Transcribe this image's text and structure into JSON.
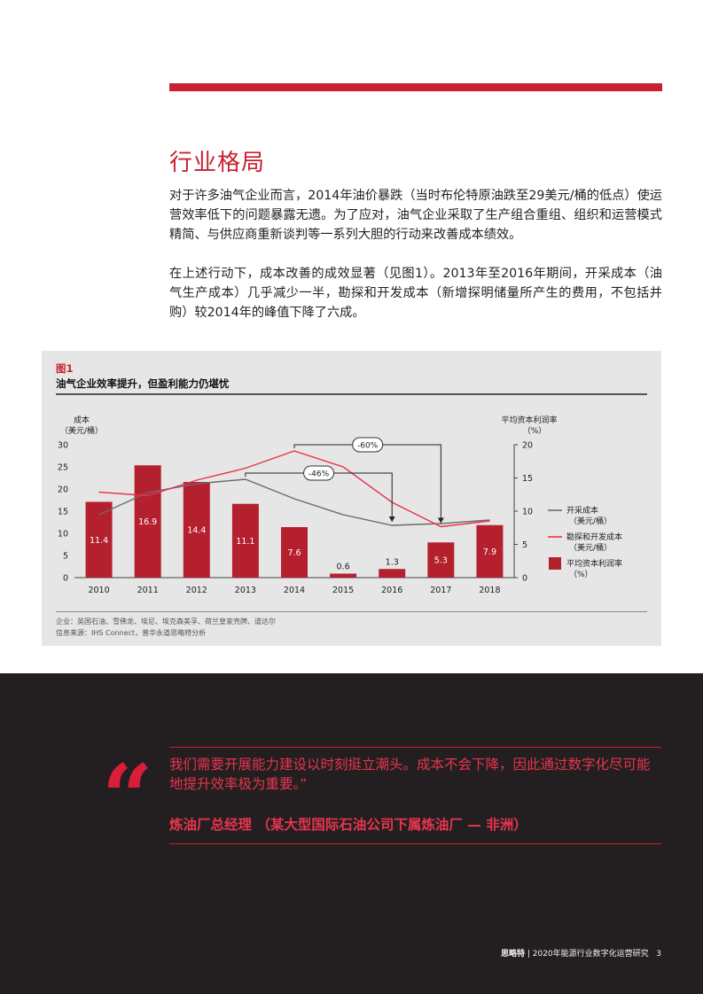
{
  "page": {
    "section_title": "行业格局",
    "paragraph1": "对于许多油气企业而言，2014年油价暴跌（当时布伦特原油跌至29美元/桶的低点）使运营效率低下的问题暴露无遗。为了应对，油气企业采取了生产组合重组、组织和运营模式精简、与供应商重新谈判等一系列大胆的行动来改善成本绩效。",
    "paragraph2": "在上述行动下，成本改善的成效显著（见图1）。2013年至2016年期间，开采成本（油气生产成本）几乎减少一半，勘探和开发成本（新增探明储量所产生的费用，不包括并购）较2014年的峰值下降了六成。"
  },
  "figure": {
    "label": "图1",
    "title": "油气企业效率提升，但盈利能力仍堪忧",
    "note_companies": "企业：英国石油、雪佛龙、埃尼、埃克森美孚、荷兰皇家壳牌、道达尔",
    "note_source": "信息来源：IHS Connect，普华永道思略特分析"
  },
  "chart_data": {
    "type": "bar+line",
    "categories": [
      "2010",
      "2011",
      "2012",
      "2013",
      "2014",
      "2015",
      "2016",
      "2017",
      "2018"
    ],
    "left_axis": {
      "label_line1": "成本",
      "label_line2": "（美元/桶）",
      "ylim": [
        0,
        30
      ],
      "ticks": [
        0,
        5,
        10,
        15,
        20,
        25,
        30
      ]
    },
    "right_axis": {
      "label_line1": "平均资本利润率",
      "label_line2": "（%）",
      "ylim": [
        0,
        20
      ],
      "ticks": [
        0,
        5,
        10,
        15,
        20
      ]
    },
    "bars": {
      "name_line1": "平均资本利润率",
      "name_line2": "（%）",
      "axis": "right",
      "color": "#b5202e",
      "values": [
        11.4,
        16.9,
        14.4,
        11.1,
        7.6,
        0.6,
        1.3,
        5.3,
        7.9
      ],
      "labels": [
        "11.4",
        "16.9",
        "14.4",
        "11.1",
        "7.6",
        "0.6",
        "1.3",
        "5.3",
        "7.9"
      ]
    },
    "lines": [
      {
        "name_line1": "开采成本",
        "name_line2": "（美元/桶）",
        "axis": "left",
        "color": "#6b6b6b",
        "values": [
          14.2,
          19.2,
          21.2,
          22.2,
          17.8,
          14.2,
          11.8,
          12.2,
          13.0
        ]
      },
      {
        "name_line1": "勘探和开发成本",
        "name_line2": "（美元/桶）",
        "axis": "left",
        "color": "#e8334d",
        "values": [
          19.3,
          18.5,
          22.0,
          24.7,
          28.6,
          25.0,
          17.0,
          11.5,
          12.8
        ]
      }
    ],
    "annotations": [
      {
        "text": "-46%",
        "from": "2013",
        "to": "2016",
        "series": "开采成本"
      },
      {
        "text": "-60%",
        "from": "2014",
        "to": "2017",
        "series": "勘探和开发成本"
      }
    ],
    "legend_position": "right"
  },
  "quote": {
    "text": "我们需要开展能力建设以时刻挺立潮头。成本不会下降，因此通过数字化尽可能地提升效率极为重要。”",
    "attribution": "炼油厂总经理 （某大型国际石油公司下属炼油厂 — 非洲）",
    "mark": "“"
  },
  "footer": {
    "brand": "思略特",
    "title": " | 2020年能源行业数字化运营研究",
    "page": "3"
  },
  "colors": {
    "accent": "#c8202f",
    "dark_panel": "#231f20",
    "quote": "#e8344e",
    "chart_bg": "#e6e6e6"
  }
}
